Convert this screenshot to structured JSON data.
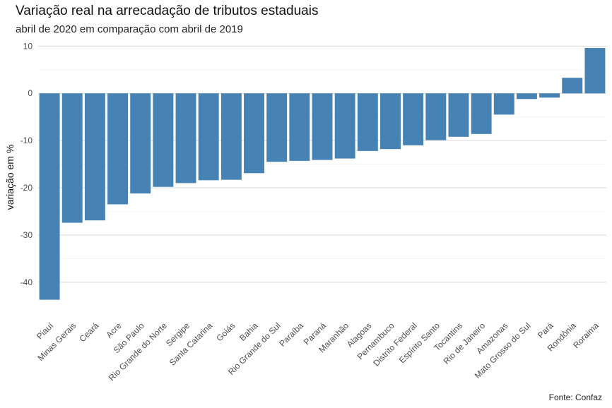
{
  "chart_data": {
    "type": "bar",
    "title": "Variação real na arrecadação de tributos estaduais",
    "subtitle": "abril de 2020 em comparação com abril de 2019",
    "xlabel": "",
    "ylabel": "variação em %",
    "caption": "Fonte: Confaz",
    "ylim": [
      -46,
      10.5
    ],
    "yticks": [
      10,
      0,
      -10,
      -20,
      -30,
      -40
    ],
    "grid": true,
    "legend": "none",
    "bar_color": "#4682B4",
    "categories": [
      "Piauí",
      "Minas Gerais",
      "Ceará",
      "Acre",
      "São Paulo",
      "Rio Grande do Norte",
      "Sergipe",
      "Santa Catarina",
      "Goiás",
      "Bahia",
      "Rio Grande do Sul",
      "Paraíba",
      "Paraná",
      "Maranhão",
      "Alagoas",
      "Pernambuco",
      "Distrito Federal",
      "Espírito Santo",
      "Tocantins",
      "Rio de Janeiro",
      "Amazonas",
      "Mato Grosso do Sul",
      "Pará",
      "Rondônia",
      "Roraima"
    ],
    "values": [
      -43.7,
      -27.4,
      -26.9,
      -23.5,
      -21.2,
      -19.8,
      -19.0,
      -18.4,
      -18.3,
      -16.9,
      -14.5,
      -14.3,
      -14.1,
      -13.8,
      -12.2,
      -11.8,
      -11.0,
      -9.9,
      -9.2,
      -8.6,
      -4.5,
      -1.2,
      -0.9,
      3.3,
      9.6
    ]
  }
}
